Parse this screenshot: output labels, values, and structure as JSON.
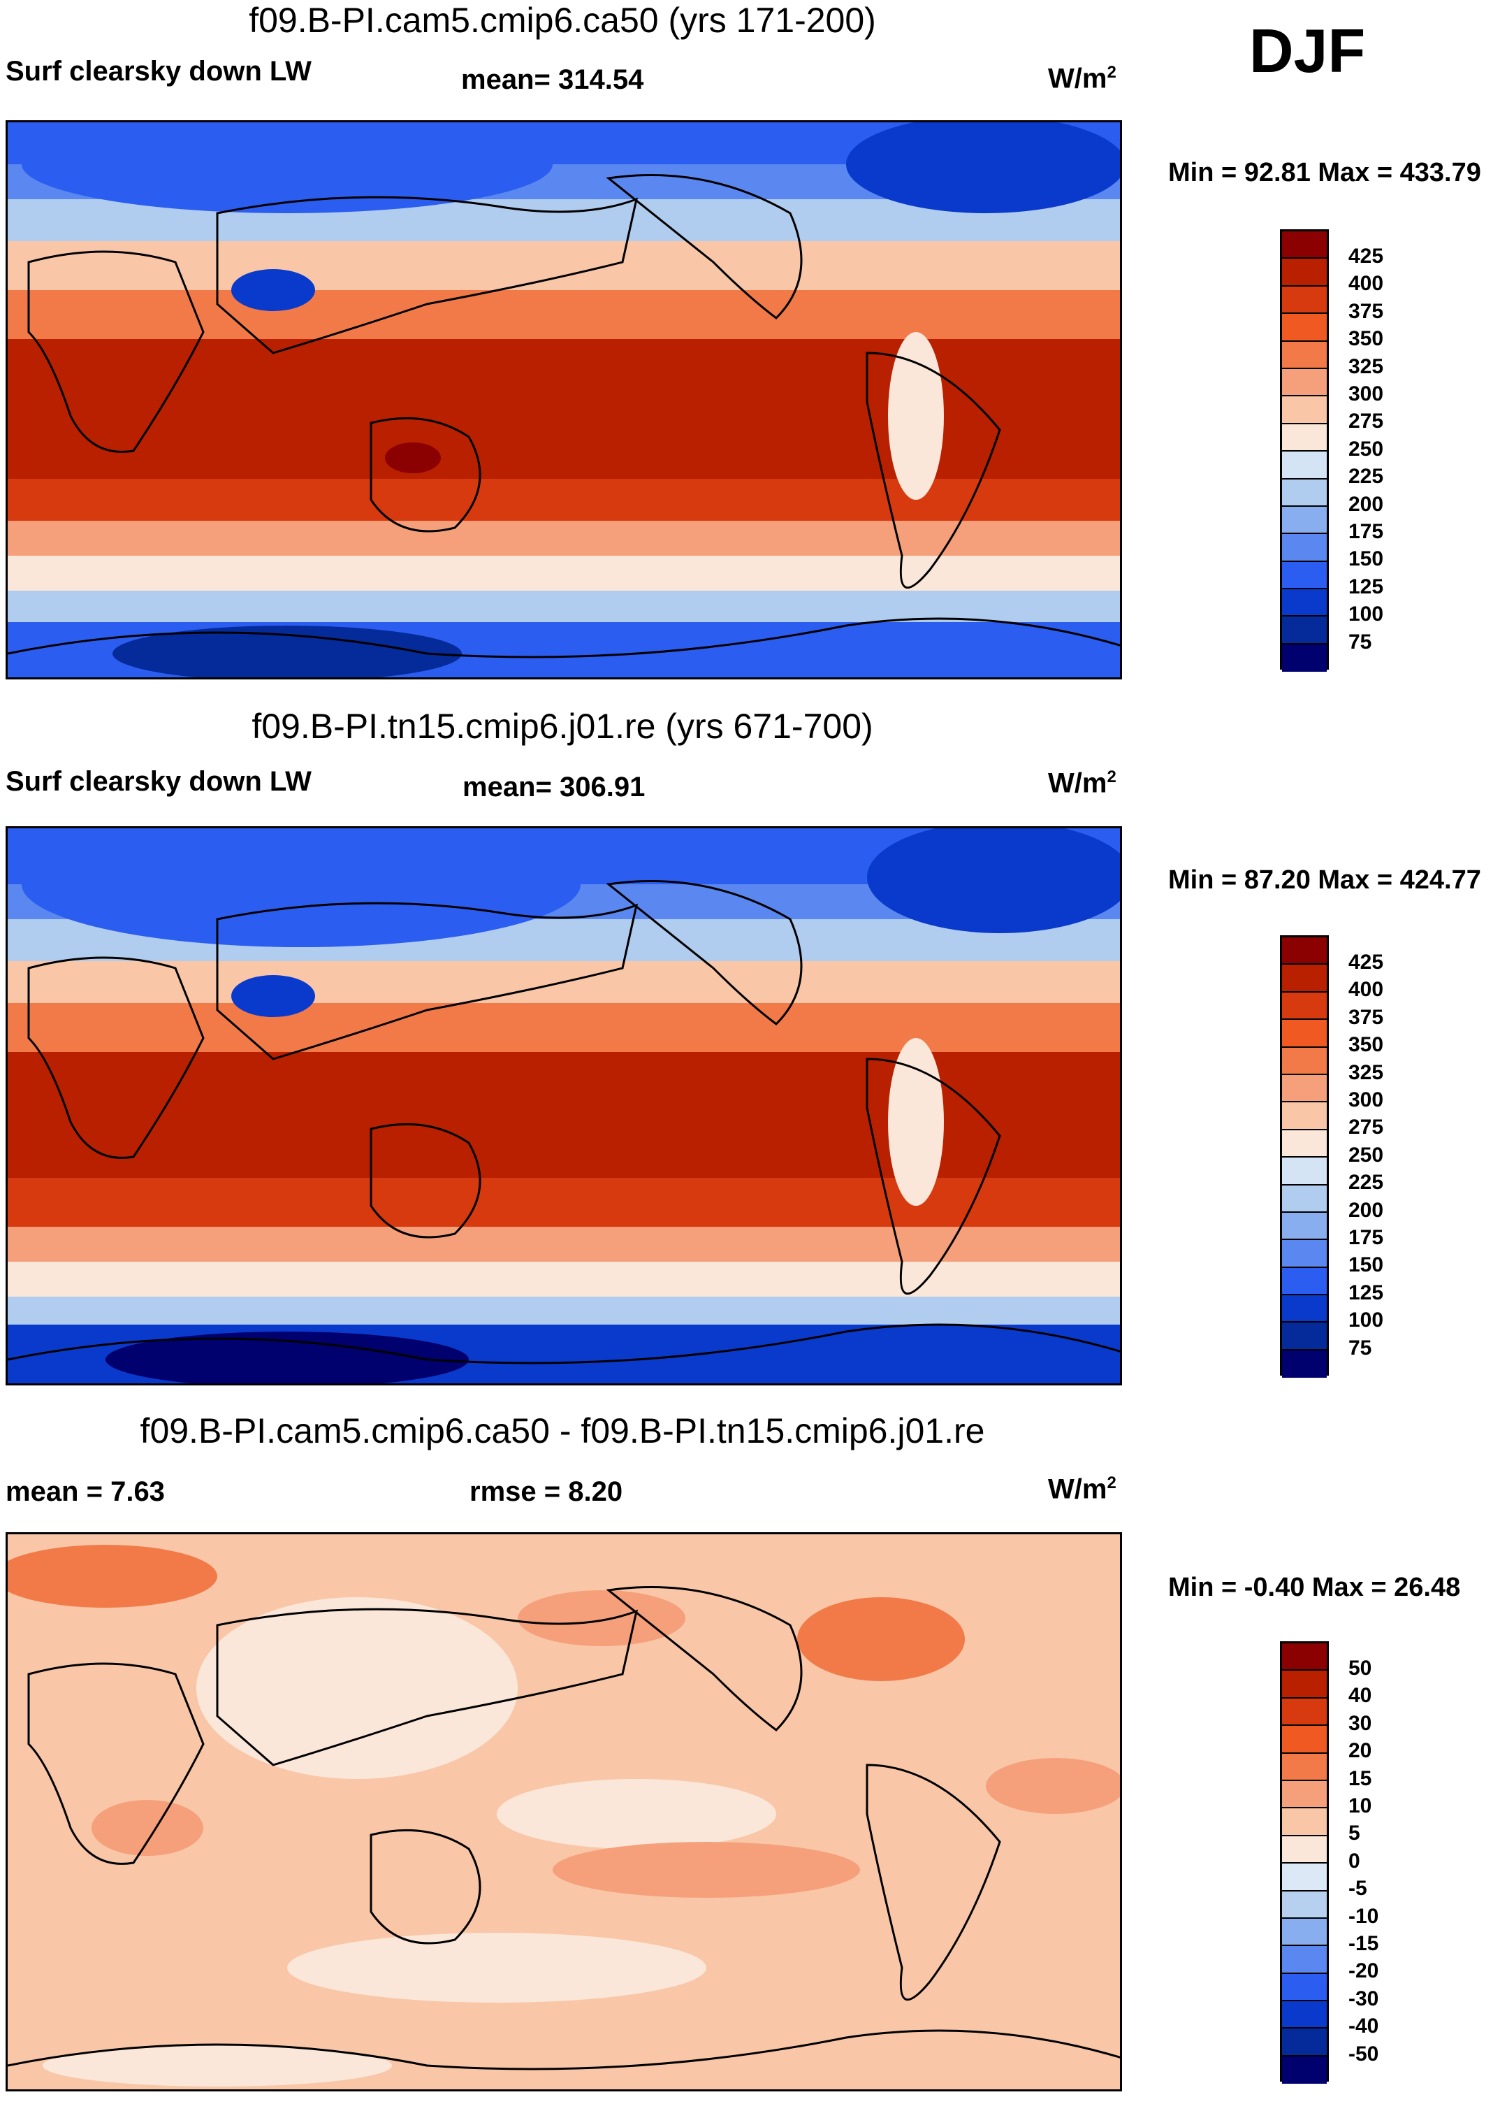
{
  "season": "DJF",
  "panels": [
    {
      "title": "f09.B-PI.cam5.cmip6.ca50 (yrs 171-200)",
      "left_label": "Surf clearsky down LW",
      "center_label": "mean= 314.54",
      "units_base": "W/m",
      "units_exp": "2",
      "min_max": "Min =  92.81 Max = 433.79",
      "colorbar_labels": [
        "425",
        "400",
        "375",
        "350",
        "325",
        "300",
        "275",
        "250",
        "225",
        "200",
        "175",
        "150",
        "125",
        "100",
        "75"
      ]
    },
    {
      "title": "f09.B-PI.tn15.cmip6.j01.re (yrs 671-700)",
      "left_label": "Surf clearsky down LW",
      "center_label": "mean= 306.91",
      "units_base": "W/m",
      "units_exp": "2",
      "min_max": "Min = 87.20 Max = 424.77",
      "colorbar_labels": [
        "425",
        "400",
        "375",
        "350",
        "325",
        "300",
        "275",
        "250",
        "225",
        "200",
        "175",
        "150",
        "125",
        "100",
        "75"
      ]
    },
    {
      "title": "f09.B-PI.cam5.cmip6.ca50 - f09.B-PI.tn15.cmip6.j01.re",
      "left_label": "mean =   7.63",
      "center_label": "rmse =    8.20",
      "units_base": "W/m",
      "units_exp": "2",
      "min_max": "Min =  -0.40 Max =  26.48",
      "colorbar_labels": [
        "50",
        "40",
        "30",
        "20",
        "15",
        "10",
        "5",
        "0",
        "-5",
        "-10",
        "-15",
        "-20",
        "-30",
        "-40",
        "-50"
      ]
    }
  ],
  "colors": {
    "abs_scale": [
      "#8b0000",
      "#b82000",
      "#d83a10",
      "#f05a22",
      "#f27a48",
      "#f5a07a",
      "#f9c7a8",
      "#fbe7d9",
      "#d5e4f4",
      "#b0ccee",
      "#88aef0",
      "#5a88f0",
      "#2b5df0",
      "#0a3acc",
      "#052a9a",
      "#00006e"
    ],
    "diff_scale": [
      "#8b0000",
      "#b82000",
      "#d83a10",
      "#f05a22",
      "#f27a48",
      "#f5a07a",
      "#f9c7a8",
      "#fbe7d9",
      "#dce8f6",
      "#b8d0f0",
      "#88aef0",
      "#5a88f0",
      "#2b5df0",
      "#0a3acc",
      "#052a9a",
      "#00006e"
    ],
    "coast": "#000000"
  }
}
